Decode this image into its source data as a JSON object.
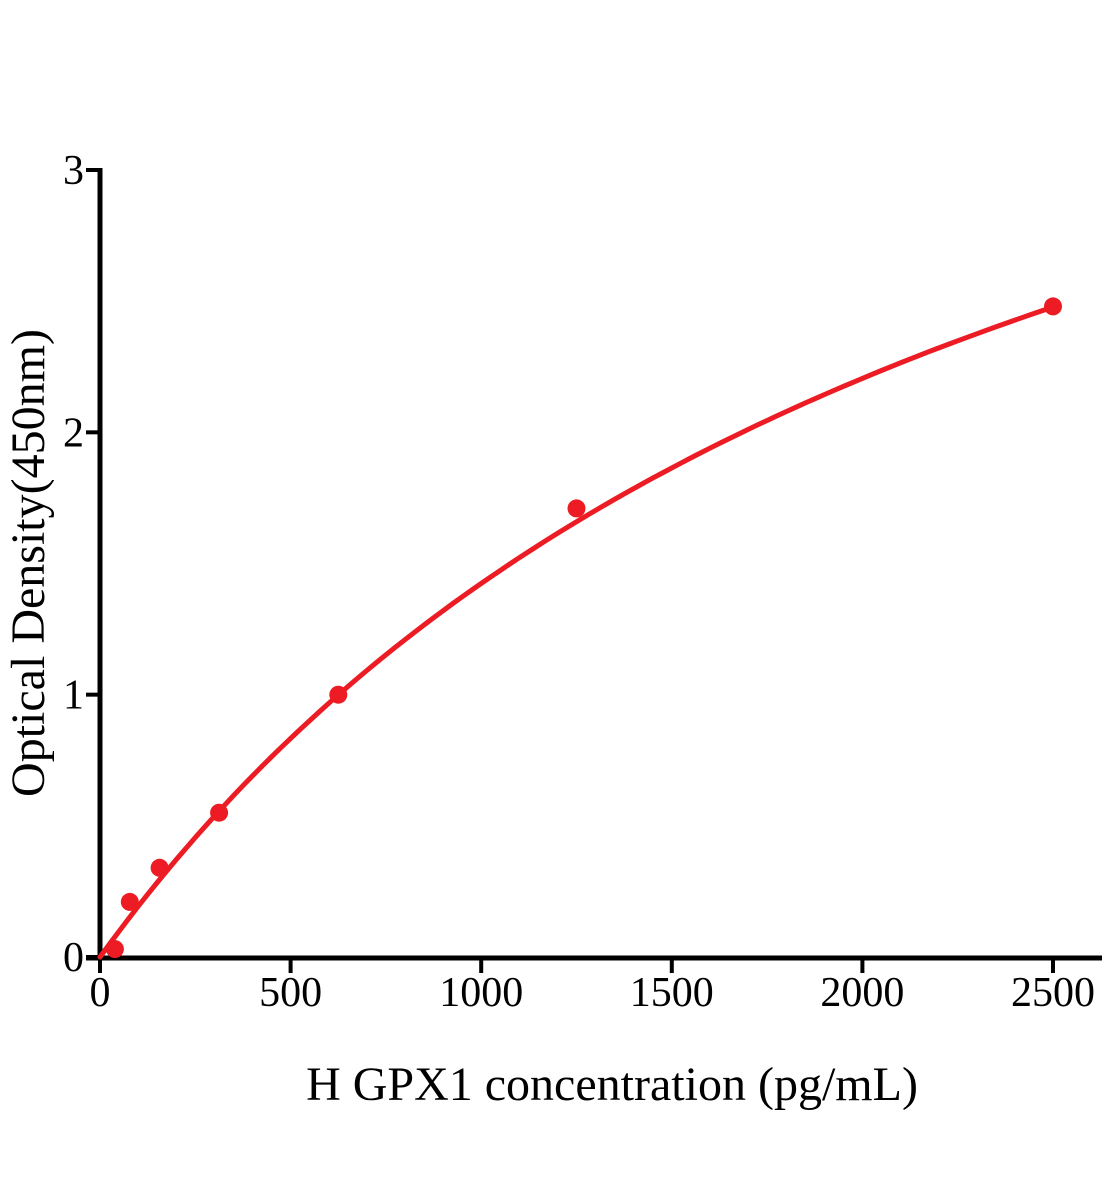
{
  "page": {
    "background": "#ffffff"
  },
  "chart_data": {
    "type": "scatter",
    "title": "",
    "xlabel": "H GPX1 concentration (pg/mL)",
    "ylabel": "Optical Density(450nm)",
    "x": [
      39.06,
      78.13,
      156.25,
      312.5,
      625,
      1250,
      2500
    ],
    "y": [
      0.03,
      0.21,
      0.34,
      0.55,
      1.0,
      1.71,
      2.48
    ],
    "x_ticks": [
      0,
      500,
      1000,
      1500,
      2000,
      2500
    ],
    "y_ticks": [
      0,
      1,
      2,
      3
    ],
    "xlim": [
      0,
      2630
    ],
    "ylim": [
      0,
      3
    ],
    "grid": false,
    "marker_color": "#ed1c24",
    "line_color": "#ed1c24",
    "axis_color": "#000000",
    "fit": {
      "type": "saturation",
      "formula": "y = a*x/(b+x)",
      "a": 4.89,
      "b": 2434,
      "x_start": 0,
      "x_end": 2500
    }
  }
}
